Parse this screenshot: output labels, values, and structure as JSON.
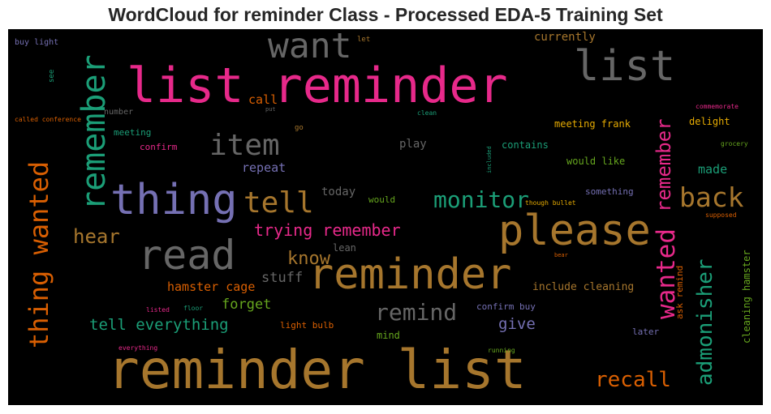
{
  "title": "WordCloud for reminder Class - Processed EDA-5 Training Set",
  "colors": {
    "background": "#000000",
    "title": "#262626"
  },
  "words": [
    {
      "text": "reminder list",
      "color": "#a6762d"
    },
    {
      "text": "list reminder",
      "color": "#e7298a"
    },
    {
      "text": "please",
      "color": "#a6762d"
    },
    {
      "text": "reminder",
      "color": "#a6762d"
    },
    {
      "text": "thing",
      "color": "#7570b3"
    },
    {
      "text": "list",
      "color": "#666666"
    },
    {
      "text": "want",
      "color": "#666666"
    },
    {
      "text": "read",
      "color": "#666666"
    },
    {
      "text": "remember",
      "color": "#1b9e77"
    },
    {
      "text": "thing wanted",
      "color": "#d95f02"
    },
    {
      "text": "item",
      "color": "#666666"
    },
    {
      "text": "tell",
      "color": "#a6762d"
    },
    {
      "text": "back",
      "color": "#a6762d"
    },
    {
      "text": "monitor",
      "color": "#1b9e77"
    },
    {
      "text": "wanted",
      "color": "#e7298a"
    },
    {
      "text": "remember",
      "color": "#e7298a"
    },
    {
      "text": "admonisher",
      "color": "#1b9e77"
    },
    {
      "text": "remind",
      "color": "#666666"
    },
    {
      "text": "recall",
      "color": "#d95f02"
    },
    {
      "text": "hear",
      "color": "#a6762d"
    },
    {
      "text": "know",
      "color": "#a6762d"
    },
    {
      "text": "trying remember",
      "color": "#e7298a"
    },
    {
      "text": "tell everything",
      "color": "#1b9e77"
    },
    {
      "text": "forget",
      "color": "#66a61e"
    },
    {
      "text": "give",
      "color": "#7570b3"
    },
    {
      "text": "stuff",
      "color": "#666666"
    },
    {
      "text": "hamster cage",
      "color": "#d95f02"
    },
    {
      "text": "repeat",
      "color": "#7570b3"
    },
    {
      "text": "made",
      "color": "#1b9e77"
    },
    {
      "text": "call",
      "color": "#d95f02"
    },
    {
      "text": "today",
      "color": "#666666"
    },
    {
      "text": "play",
      "color": "#666666"
    },
    {
      "text": "currently",
      "color": "#a6762d"
    },
    {
      "text": "meeting frank",
      "color": "#e6ab02"
    },
    {
      "text": "delight",
      "color": "#e6ab02"
    },
    {
      "text": "contains",
      "color": "#1b9e77"
    },
    {
      "text": "would like",
      "color": "#66a61e"
    },
    {
      "text": "something",
      "color": "#7570b3"
    },
    {
      "text": "include cleaning",
      "color": "#a6762d"
    },
    {
      "text": "cleaning hamster",
      "color": "#66a61e"
    },
    {
      "text": "ask remind",
      "color": "#d95f02"
    },
    {
      "text": "confirm buy",
      "color": "#7570b3"
    },
    {
      "text": "light bulb",
      "color": "#d95f02"
    },
    {
      "text": "mind",
      "color": "#66a61e"
    },
    {
      "text": "later",
      "color": "#7570b3"
    },
    {
      "text": "meeting",
      "color": "#1b9e77"
    },
    {
      "text": "confirm",
      "color": "#e7298a"
    },
    {
      "text": "lean",
      "color": "#666666"
    },
    {
      "text": "would",
      "color": "#66a61e"
    },
    {
      "text": "buy light",
      "color": "#7570b3"
    },
    {
      "text": "see",
      "color": "#1b9e77"
    },
    {
      "text": "let",
      "color": "#a6762d"
    },
    {
      "text": "number",
      "color": "#666666"
    },
    {
      "text": "called conference",
      "color": "#d95f02"
    },
    {
      "text": "put",
      "color": "#666666"
    },
    {
      "text": "clean",
      "color": "#1b9e77"
    },
    {
      "text": "go",
      "color": "#a6762d"
    },
    {
      "text": "commemorate",
      "color": "#e7298a"
    },
    {
      "text": "grocery",
      "color": "#66a61e"
    },
    {
      "text": "included",
      "color": "#1b9e77"
    },
    {
      "text": "though bullet",
      "color": "#e6ab02"
    },
    {
      "text": "supposed",
      "color": "#d95f02"
    },
    {
      "text": "bear",
      "color": "#d95f02"
    },
    {
      "text": "listed",
      "color": "#e7298a"
    },
    {
      "text": "floor",
      "color": "#1b9e77"
    },
    {
      "text": "everything",
      "color": "#e7298a"
    },
    {
      "text": "running",
      "color": "#66a61e"
    }
  ]
}
